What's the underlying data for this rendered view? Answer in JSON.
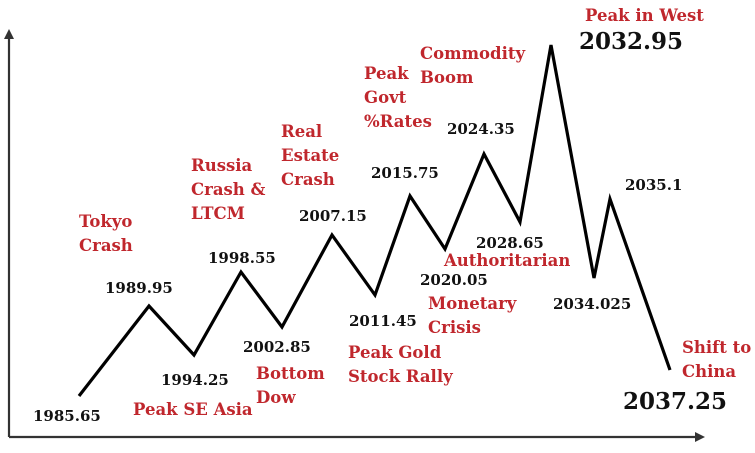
{
  "colors": {
    "line": "#000000",
    "axis": "#333333",
    "event_text": "#c0272d",
    "date_text": "#111111"
  },
  "turning_points": [
    {
      "id": "tp-1985",
      "label": "1985.65"
    },
    {
      "id": "tp-1989",
      "label": "1989.95"
    },
    {
      "id": "tp-1994",
      "label": "1994.25"
    },
    {
      "id": "tp-1998",
      "label": "1998.55"
    },
    {
      "id": "tp-2002",
      "label": "2002.85"
    },
    {
      "id": "tp-2007",
      "label": "2007.15"
    },
    {
      "id": "tp-2011",
      "label": "2011.45"
    },
    {
      "id": "tp-2015",
      "label": "2015.75"
    },
    {
      "id": "tp-2020",
      "label": "2020.05"
    },
    {
      "id": "tp-2024",
      "label": "2024.35"
    },
    {
      "id": "tp-2028",
      "label": "2028.65"
    },
    {
      "id": "tp-2032",
      "label": "2032.95"
    },
    {
      "id": "tp-2034",
      "label": "2034.025"
    },
    {
      "id": "tp-2035",
      "label": "2035.1"
    },
    {
      "id": "tp-2037",
      "label": "2037.25"
    }
  ],
  "events": [
    {
      "id": "tokyo-crash",
      "lines": [
        "Tokyo",
        "Crash"
      ]
    },
    {
      "id": "peak-se-asia",
      "lines": [
        "Peak SE Asia"
      ]
    },
    {
      "id": "russia-ltcm",
      "lines": [
        "Russia",
        "Crash &",
        "LTCM"
      ]
    },
    {
      "id": "bottom-dow",
      "lines": [
        "Bottom",
        "Dow"
      ]
    },
    {
      "id": "real-estate-crash",
      "lines": [
        "Real",
        "Estate",
        "Crash"
      ]
    },
    {
      "id": "peak-gold",
      "lines": [
        "Peak Gold",
        "Stock Rally"
      ]
    },
    {
      "id": "peak-govt-rates",
      "lines": [
        "Peak",
        "Govt",
        "%Rates"
      ]
    },
    {
      "id": "monetary-crisis",
      "lines": [
        "Monetary",
        "Crisis"
      ]
    },
    {
      "id": "commodity-boom",
      "lines": [
        "Commodity",
        "Boom"
      ]
    },
    {
      "id": "authoritarian",
      "lines": [
        "Authoritarian"
      ]
    },
    {
      "id": "peak-in-west",
      "lines": [
        "Peak in West"
      ]
    },
    {
      "id": "shift-to-china",
      "lines": [
        "Shift to",
        "China"
      ]
    }
  ]
}
